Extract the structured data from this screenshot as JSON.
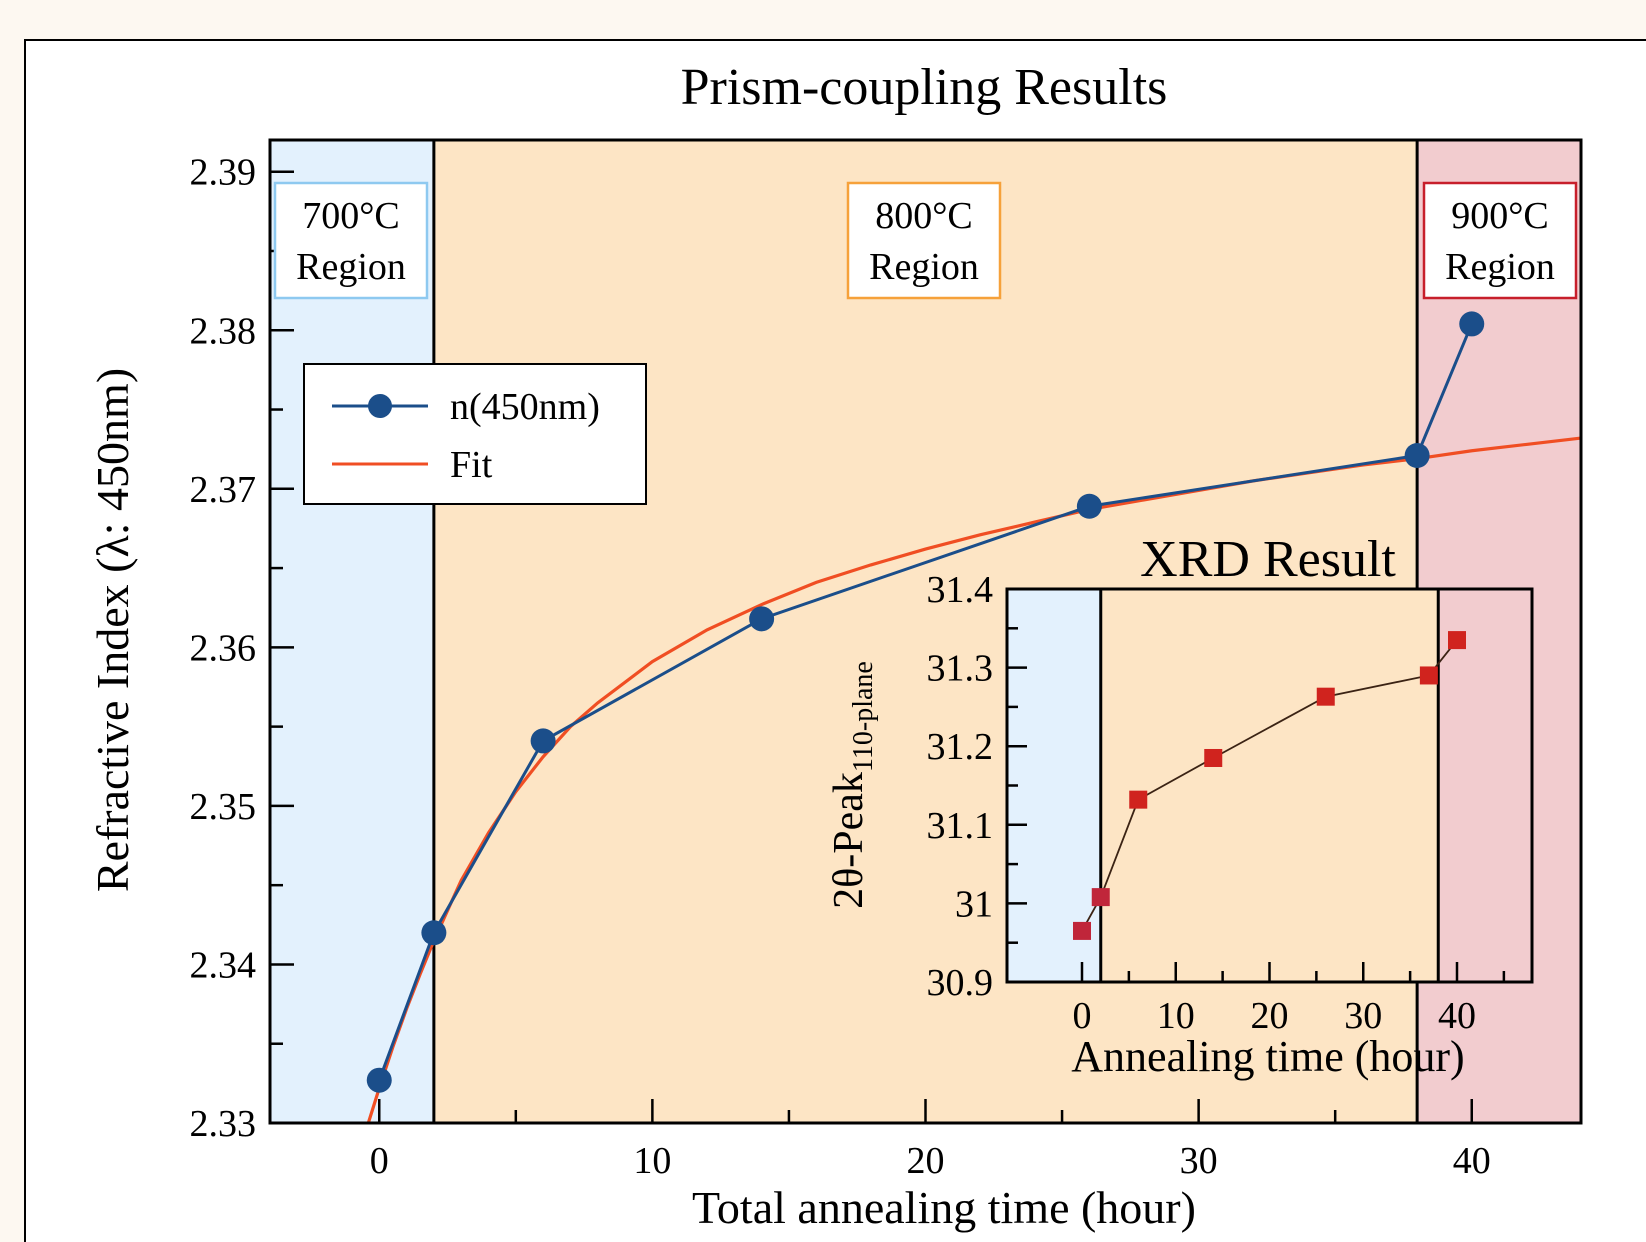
{
  "chart_data": [
    {
      "type": "line",
      "title": "Prism-coupling Results",
      "xlabel": "Total annealing time (hour)",
      "ylabel": "Refractive Index (λ: 450nm)",
      "xlim": [
        -4,
        44
      ],
      "ylim": [
        2.33,
        2.392
      ],
      "xticks": [
        0,
        10,
        20,
        30,
        40
      ],
      "xtick_labels": [
        "0",
        "10",
        "20",
        "30",
        "40"
      ],
      "yticks": [
        2.33,
        2.34,
        2.35,
        2.36,
        2.37,
        2.38,
        2.39
      ],
      "ytick_labels": [
        "2.33",
        "2.34",
        "2.35",
        "2.36",
        "2.37",
        "2.38",
        "2.39"
      ],
      "grid": false,
      "legend": {
        "position": "upper-left",
        "entries": [
          "n(450nm)",
          "Fit"
        ]
      },
      "regions": [
        {
          "label_line1": "700°C",
          "label_line2": "Region",
          "x_from": -4,
          "x_to": 2,
          "fill": "#e3f1fd",
          "border": "#8ec9f0"
        },
        {
          "label_line1": "800°C",
          "label_line2": "Region",
          "x_from": 2,
          "x_to": 38,
          "fill": "#fde5c5",
          "border": "#f6a13a"
        },
        {
          "label_line1": "900°C",
          "label_line2": "Region",
          "x_from": 38,
          "x_to": 44,
          "fill": "#f2cccf",
          "border": "#c71f2b"
        }
      ],
      "series": [
        {
          "name": "n(450nm)",
          "x": [
            0,
            2,
            6,
            14,
            26,
            38,
            40
          ],
          "y": [
            2.3327,
            2.342,
            2.3541,
            2.3618,
            2.3689,
            2.3721,
            2.3804
          ],
          "color": "#1b4e8a",
          "marker": "circle"
        },
        {
          "name": "Fit",
          "x": [
            -0.4,
            0,
            0.5,
            1,
            1.5,
            2,
            3,
            4,
            5,
            6,
            7,
            8,
            10,
            12,
            14,
            16,
            18,
            20,
            22,
            24,
            26,
            28,
            30,
            32,
            34,
            36,
            38,
            40,
            42,
            44
          ],
          "y": [
            2.33,
            2.3322,
            2.3348,
            2.3372,
            2.3394,
            2.3415,
            2.3453,
            2.3483,
            2.3509,
            2.3531,
            2.355,
            2.3565,
            2.3591,
            2.3611,
            2.3627,
            2.3641,
            2.3652,
            2.3662,
            2.3671,
            2.3679,
            2.3687,
            2.3693,
            2.3699,
            2.3705,
            2.371,
            2.3715,
            2.3719,
            2.3724,
            2.3728,
            2.3732
          ],
          "color": "#f04e23",
          "marker": "none"
        }
      ]
    },
    {
      "type": "line",
      "title": "XRD Result",
      "xlabel": "Annealing time (hour)",
      "ylabel_main": "2θ-Peak",
      "ylabel_sub": "110-plane",
      "xlim": [
        -8,
        48
      ],
      "ylim": [
        30.9,
        31.4
      ],
      "xticks": [
        0,
        10,
        20,
        30,
        40
      ],
      "xtick_labels": [
        "0",
        "10",
        "20",
        "30",
        "40"
      ],
      "yticks": [
        30.9,
        31.0,
        31.1,
        31.2,
        31.3,
        31.4
      ],
      "ytick_labels": [
        "30.9",
        "31",
        "31.1",
        "31.2",
        "31.3",
        "31.4"
      ],
      "grid": false,
      "regions": [
        {
          "x_from": -8,
          "x_to": 2,
          "fill": "#e3f1fd"
        },
        {
          "x_from": 2,
          "x_to": 38,
          "fill": "#fde5c5"
        },
        {
          "x_from": 38,
          "x_to": 48,
          "fill": "#f2cccf"
        }
      ],
      "series": [
        {
          "x": [
            0,
            2,
            6,
            14,
            26,
            37,
            40
          ],
          "y": [
            30.965,
            31.008,
            31.132,
            31.185,
            31.263,
            31.29,
            31.335
          ],
          "line_color": "#3b2314",
          "marker_colors": [
            "#c0263a",
            "#c0263a",
            "#d0231e",
            "#d0231e",
            "#d0231e",
            "#d0231e",
            "#d0231e"
          ],
          "marker": "square"
        }
      ]
    }
  ]
}
